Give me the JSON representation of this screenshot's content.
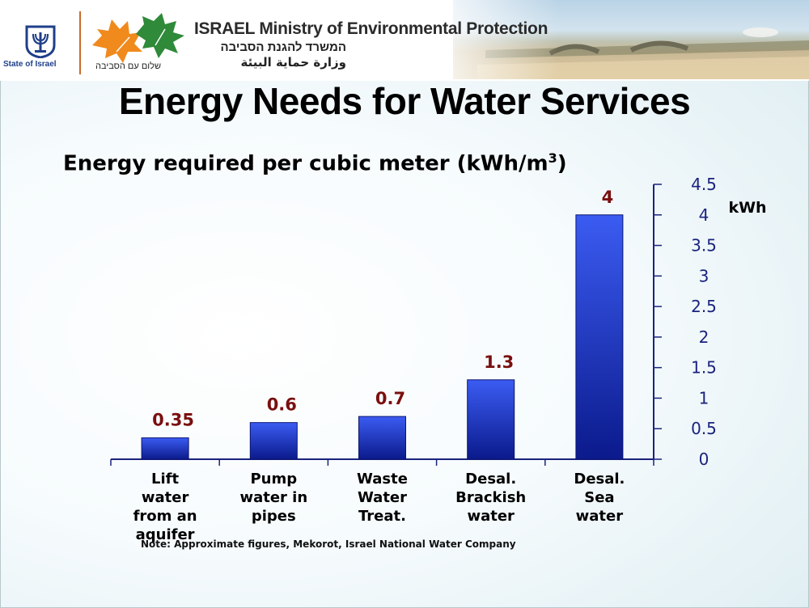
{
  "header": {
    "state_label": "State of Israel",
    "ministry_en": "ISRAEL Ministry of Environmental Protection",
    "ministry_he": "המשרד להגנת הסביבה",
    "ministry_ar": "وزارة حماية البيئة",
    "slogan_he": "שלום עם הסביבה"
  },
  "slide": {
    "title": "Energy Needs for Water Services",
    "subtitle": "Energy required per cubic meter (kWh/m",
    "subtitle_sup": "3",
    "subtitle_end": ")",
    "note": "Note: Approximate figures, Mekorot, Israel National Water Company"
  },
  "colors": {
    "bar_top": "#3b5cf2",
    "bar_bottom": "#0b1a8c",
    "value_label": "#7a0f0f",
    "axis": "#1a237e"
  },
  "chart_data": {
    "type": "bar",
    "title": "Energy required per cubic meter (kWh/m3)",
    "categories": [
      [
        "Lift",
        "water",
        "from an",
        "aquifer"
      ],
      [
        "Pump",
        "water in",
        "pipes"
      ],
      [
        "Waste",
        "Water",
        "Treat."
      ],
      [
        "Desal.",
        "Brackish",
        "water"
      ],
      [
        "Desal.",
        "Sea",
        "water"
      ]
    ],
    "values": [
      0.35,
      0.6,
      0.7,
      1.3,
      4
    ],
    "value_labels": [
      "0.35",
      "0.6",
      "0.7",
      "1.3",
      "4"
    ],
    "ylabel": "kWh",
    "y_axis_side": "right",
    "ylim": [
      0,
      4.5
    ],
    "yticks": [
      0,
      0.5,
      1,
      1.5,
      2,
      2.5,
      3,
      3.5,
      4,
      4.5
    ],
    "ytick_labels": [
      "0",
      "0.5",
      "1",
      "1.5",
      "2",
      "2.5",
      "3",
      "3.5",
      "4",
      "4.5"
    ],
    "grid": false
  }
}
